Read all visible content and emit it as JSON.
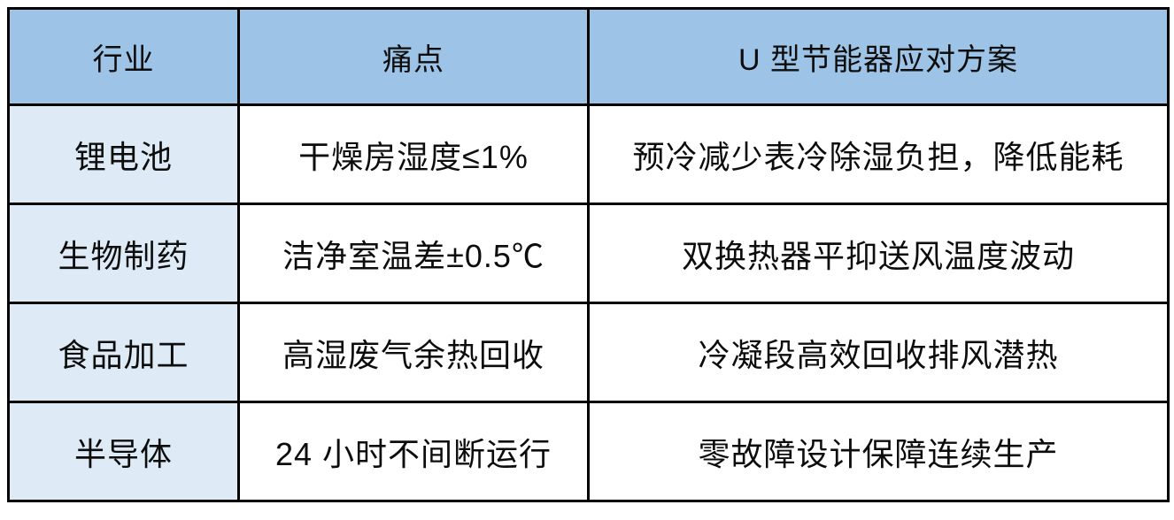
{
  "table": {
    "colors": {
      "header_bg": "#9DC3E6",
      "industry_col_bg": "#DEEBF7",
      "cell_bg": "#FFFFFF",
      "border": "#000000",
      "text": "#0D0D0D"
    },
    "columns": [
      {
        "label": "行业"
      },
      {
        "label": "痛点"
      },
      {
        "label": "U 型节能器应对方案"
      }
    ],
    "rows": [
      {
        "industry": "锂电池",
        "pain": "干燥房湿度≤1%",
        "solution": "预冷减少表冷除湿负担，降低能耗"
      },
      {
        "industry": "生物制药",
        "pain": "洁净室温差±0.5℃",
        "solution": "双换热器平抑送风温度波动"
      },
      {
        "industry": "食品加工",
        "pain": "高湿废气余热回收",
        "solution": "冷凝段高效回收排风潜热"
      },
      {
        "industry": "半导体",
        "pain": "24 小时不间断运行",
        "solution": "零故障设计保障连续生产"
      }
    ]
  }
}
